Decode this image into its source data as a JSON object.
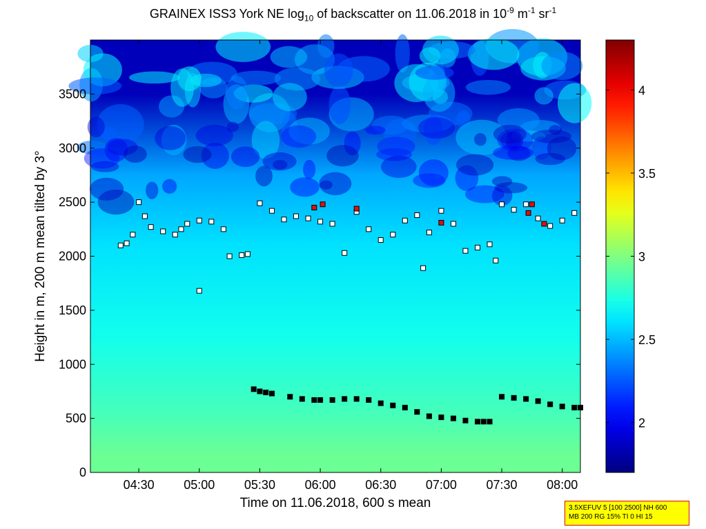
{
  "title": {
    "main": "GRAINEX ISS3 York NE log",
    "sub": "10",
    "mid": " of backscatter on 11.06.2018 in 10",
    "sup1": "-9",
    "m_unit": " m",
    "sup2": "-1",
    "sr_unit": " sr",
    "sup3": "-1"
  },
  "info_box": {
    "line1": "3.5XEFUV 5 [100 2500] NH 600",
    "line2": "MB 200 RG 15% TI 0 HI 15"
  },
  "chart_data": {
    "type": "heatmap",
    "xlabel": "Time on 11.06.2018, 600 s mean",
    "ylabel": "Height in m, 200 m mean tilted by 3°",
    "xlim": [
      4.1,
      8.15
    ],
    "ylim": [
      0,
      4000
    ],
    "x_ticks": [
      {
        "value": 4.5,
        "label": "04:30"
      },
      {
        "value": 5.0,
        "label": "05:00"
      },
      {
        "value": 5.5,
        "label": "05:30"
      },
      {
        "value": 6.0,
        "label": "06:00"
      },
      {
        "value": 6.5,
        "label": "06:30"
      },
      {
        "value": 7.0,
        "label": "07:00"
      },
      {
        "value": 7.5,
        "label": "07:30"
      },
      {
        "value": 8.0,
        "label": "08:00"
      }
    ],
    "y_ticks": [
      0,
      500,
      1000,
      1500,
      2000,
      2500,
      3000,
      3500
    ],
    "colorbar": {
      "range": [
        1.7,
        4.3
      ],
      "ticks": [
        2,
        2.5,
        3,
        3.5,
        4
      ],
      "colormap": "jet"
    },
    "layers": [
      {
        "height_min": 0,
        "height_max": 300,
        "value": 2.95
      },
      {
        "height_min": 300,
        "height_max": 800,
        "value": 2.85
      },
      {
        "height_min": 800,
        "height_max": 1700,
        "value": 2.72
      },
      {
        "height_min": 1700,
        "height_max": 2500,
        "value": 2.6
      },
      {
        "height_min": 2500,
        "height_max": 3000,
        "value": 2.45
      },
      {
        "height_min": 3000,
        "height_max": 4000,
        "value": 1.85
      }
    ],
    "boundary_layer_points": [
      [
        5.45,
        770
      ],
      [
        5.5,
        750
      ],
      [
        5.55,
        740
      ],
      [
        5.6,
        730
      ],
      [
        5.75,
        700
      ],
      [
        5.85,
        680
      ],
      [
        5.95,
        670
      ],
      [
        6.0,
        670
      ],
      [
        6.1,
        670
      ],
      [
        6.2,
        680
      ],
      [
        6.3,
        680
      ],
      [
        6.4,
        670
      ],
      [
        6.5,
        640
      ],
      [
        6.6,
        620
      ],
      [
        6.7,
        600
      ],
      [
        6.8,
        560
      ],
      [
        6.9,
        520
      ],
      [
        7.0,
        510
      ],
      [
        7.1,
        500
      ],
      [
        7.2,
        480
      ],
      [
        7.3,
        470
      ],
      [
        7.35,
        470
      ],
      [
        7.4,
        470
      ],
      [
        7.5,
        700
      ],
      [
        7.6,
        690
      ],
      [
        7.7,
        680
      ],
      [
        7.8,
        660
      ],
      [
        7.9,
        630
      ],
      [
        8.0,
        610
      ],
      [
        8.1,
        600
      ],
      [
        8.15,
        600
      ]
    ],
    "cloud_base_points": [
      [
        4.35,
        2100
      ],
      [
        4.4,
        2120
      ],
      [
        4.45,
        2200
      ],
      [
        4.5,
        2500
      ],
      [
        4.55,
        2370
      ],
      [
        4.6,
        2270
      ],
      [
        4.7,
        2230
      ],
      [
        4.8,
        2200
      ],
      [
        4.85,
        2250
      ],
      [
        4.9,
        2300
      ],
      [
        5.0,
        2330
      ],
      [
        5.1,
        2320
      ],
      [
        5.2,
        2250
      ],
      [
        5.25,
        2000
      ],
      [
        5.35,
        2010
      ],
      [
        5.4,
        2020
      ],
      [
        5.0,
        1680
      ],
      [
        5.5,
        2490
      ],
      [
        5.6,
        2420
      ],
      [
        5.7,
        2340
      ],
      [
        5.8,
        2370
      ],
      [
        5.9,
        2350
      ],
      [
        6.0,
        2320
      ],
      [
        6.1,
        2300
      ],
      [
        6.2,
        2030
      ],
      [
        6.3,
        2410
      ],
      [
        6.4,
        2250
      ],
      [
        6.5,
        2150
      ],
      [
        6.6,
        2200
      ],
      [
        6.7,
        2330
      ],
      [
        6.8,
        2380
      ],
      [
        6.9,
        2220
      ],
      [
        7.0,
        2420
      ],
      [
        7.1,
        2300
      ],
      [
        7.2,
        2050
      ],
      [
        7.3,
        2080
      ],
      [
        7.4,
        2110
      ],
      [
        7.5,
        2480
      ],
      [
        7.6,
        2430
      ],
      [
        7.7,
        2480
      ],
      [
        7.8,
        2350
      ],
      [
        7.9,
        2280
      ],
      [
        8.0,
        2330
      ],
      [
        8.1,
        2400
      ],
      [
        6.85,
        1890
      ],
      [
        7.45,
        1960
      ]
    ],
    "high_value_points": [
      [
        5.95,
        2450
      ],
      [
        6.02,
        2480
      ],
      [
        6.3,
        2440
      ],
      [
        7.0,
        2310
      ],
      [
        7.72,
        2400
      ],
      [
        7.85,
        2300
      ],
      [
        7.75,
        2480
      ]
    ]
  }
}
